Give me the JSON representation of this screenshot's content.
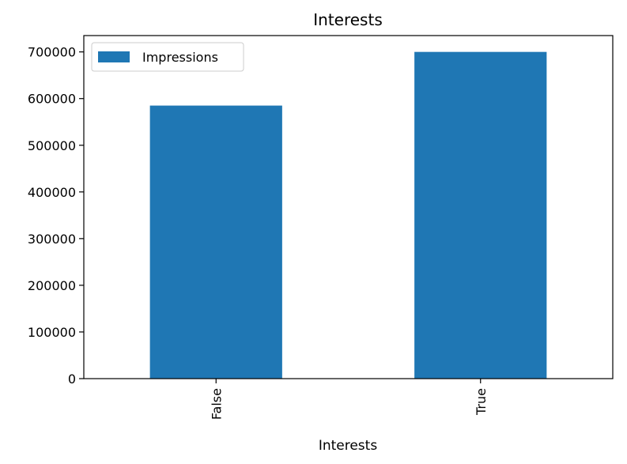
{
  "chart_data": {
    "type": "bar",
    "title": "Interests",
    "xlabel": "Interests",
    "ylabel": "",
    "categories": [
      "False",
      "True"
    ],
    "series": [
      {
        "name": "Impressions",
        "values": [
          585000,
          700000
        ],
        "color": "#1f77b4"
      }
    ],
    "ylim": [
      0,
      735000
    ],
    "yticks": [
      0,
      100000,
      200000,
      300000,
      400000,
      500000,
      600000,
      700000
    ],
    "ytick_labels": [
      "0",
      "100000",
      "200000",
      "300000",
      "400000",
      "500000",
      "600000",
      "700000"
    ],
    "grid": false,
    "legend_position": "upper-left"
  }
}
